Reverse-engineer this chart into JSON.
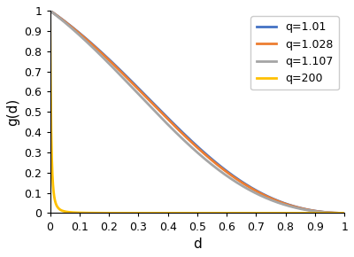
{
  "title": "",
  "xlabel": "d",
  "ylabel": "g(d)",
  "xlim": [
    0,
    1
  ],
  "ylim": [
    0,
    1
  ],
  "xticks": [
    0,
    0.1,
    0.2,
    0.3,
    0.4,
    0.5,
    0.6,
    0.7,
    0.8,
    0.9,
    1
  ],
  "yticks": [
    0,
    0.1,
    0.2,
    0.3,
    0.4,
    0.5,
    0.6,
    0.7,
    0.8,
    0.9,
    1
  ],
  "series": [
    {
      "q": 1.01,
      "color": "#4472C4",
      "label": "q=1.01"
    },
    {
      "q": 1.028,
      "color": "#ED7D31",
      "label": "q=1.028"
    },
    {
      "q": 1.107,
      "color": "#A5A5A5",
      "label": "q=1.107"
    },
    {
      "q": 200,
      "color": "#FFC000",
      "label": "q=200"
    }
  ],
  "linewidth": 2.0,
  "legend_loc": "upper right",
  "legend_fontsize": 9,
  "xlabel_fontsize": 11,
  "ylabel_fontsize": 11,
  "tick_fontsize": 9,
  "background_color": "#ffffff",
  "n_points": 500
}
